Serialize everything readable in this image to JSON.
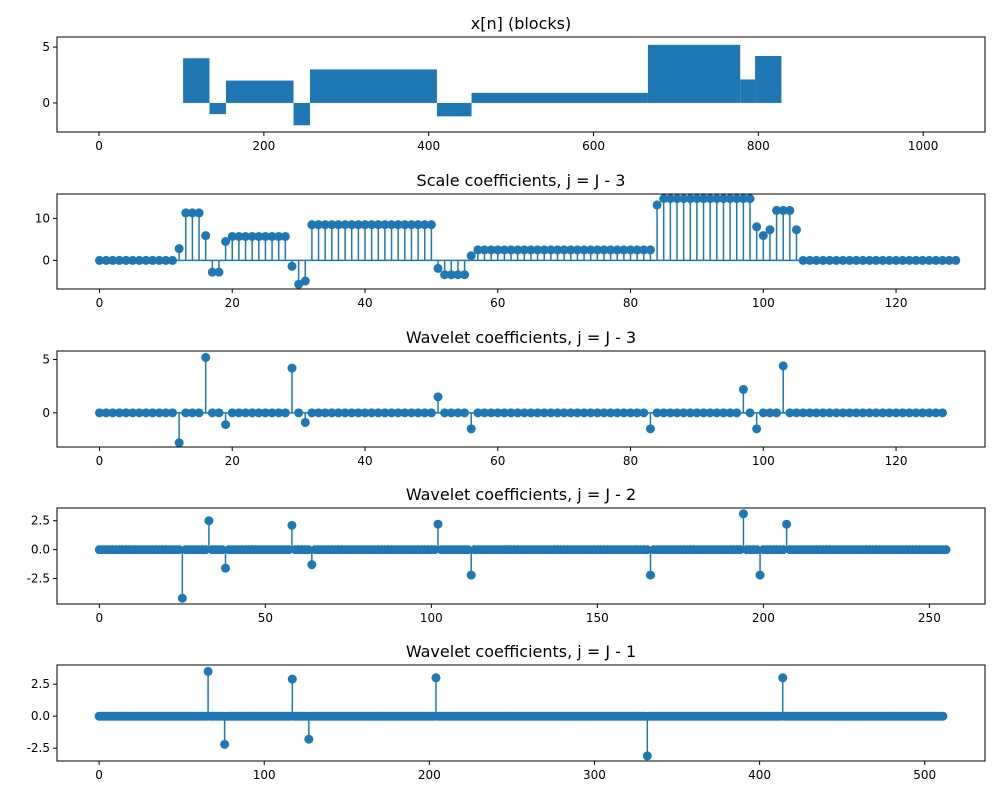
{
  "colors": {
    "series": "#1f77b4",
    "axis": "#000000",
    "background": "#ffffff"
  },
  "chart_data": [
    {
      "type": "area",
      "title": "x[n] (blocks)",
      "xlabel": "",
      "ylabel": "",
      "xlim": [
        -51,
        1075
      ],
      "ylim": [
        -2.6,
        5.9
      ],
      "xticks": [
        0,
        200,
        400,
        600,
        800,
        1000
      ],
      "yticks": [
        0,
        5
      ],
      "grid": false,
      "legend": "none",
      "steps": [
        {
          "start": 0,
          "end": 102,
          "value": 0
        },
        {
          "start": 102,
          "end": 134,
          "value": 4
        },
        {
          "start": 134,
          "end": 154,
          "value": -1
        },
        {
          "start": 154,
          "end": 236,
          "value": 2
        },
        {
          "start": 236,
          "end": 256,
          "value": -2
        },
        {
          "start": 256,
          "end": 410,
          "value": 3
        },
        {
          "start": 410,
          "end": 452,
          "value": -1.2
        },
        {
          "start": 452,
          "end": 666,
          "value": 0.9
        },
        {
          "start": 666,
          "end": 778,
          "value": 5.2
        },
        {
          "start": 778,
          "end": 796,
          "value": 2.1
        },
        {
          "start": 796,
          "end": 828,
          "value": 4.2
        },
        {
          "start": 828,
          "end": 1024,
          "value": 0
        }
      ]
    },
    {
      "type": "stem",
      "title": "Scale coefficients, j = J - 3",
      "xlabel": "",
      "ylabel": "",
      "xlim": [
        -6.4,
        133.4
      ],
      "ylim": [
        -6.8,
        15.8
      ],
      "xticks": [
        0,
        20,
        40,
        60,
        80,
        100,
        120
      ],
      "yticks": [
        0,
        10
      ],
      "grid": false,
      "legend": "none",
      "values": [
        0,
        0,
        0,
        0,
        0,
        0,
        0,
        0,
        0,
        0,
        0,
        0,
        2.8,
        11.3,
        11.3,
        11.3,
        5.9,
        -2.8,
        -2.8,
        4.5,
        5.7,
        5.7,
        5.7,
        5.7,
        5.7,
        5.7,
        5.7,
        5.7,
        5.7,
        -1.4,
        -5.7,
        -4.9,
        8.5,
        8.5,
        8.5,
        8.5,
        8.5,
        8.5,
        8.5,
        8.5,
        8.5,
        8.5,
        8.5,
        8.5,
        8.5,
        8.5,
        8.5,
        8.5,
        8.5,
        8.5,
        8.5,
        -1.9,
        -3.4,
        -3.4,
        -3.4,
        -3.4,
        1.1,
        2.5,
        2.5,
        2.5,
        2.5,
        2.5,
        2.5,
        2.5,
        2.5,
        2.5,
        2.5,
        2.5,
        2.5,
        2.5,
        2.5,
        2.5,
        2.5,
        2.5,
        2.5,
        2.5,
        2.5,
        2.5,
        2.5,
        2.5,
        2.5,
        2.5,
        2.5,
        2.5,
        13.2,
        14.7,
        14.7,
        14.7,
        14.7,
        14.7,
        14.7,
        14.7,
        14.7,
        14.7,
        14.7,
        14.7,
        14.7,
        14.7,
        14.7,
        8,
        5.9,
        7.3,
        11.9,
        11.9,
        11.9,
        7.3,
        0,
        0,
        0,
        0,
        0,
        0,
        0,
        0,
        0,
        0,
        0,
        0,
        0,
        0,
        0,
        0,
        0,
        0,
        0,
        0,
        0,
        0,
        0,
        0
      ]
    },
    {
      "type": "stem",
      "title": "Wavelet coefficients, j = J - 3",
      "xlabel": "",
      "ylabel": "",
      "xlim": [
        -6.4,
        133.4
      ],
      "ylim": [
        -3.2,
        5.8
      ],
      "xticks": [
        0,
        20,
        40,
        60,
        80,
        100,
        120
      ],
      "yticks": [
        0,
        5
      ],
      "grid": false,
      "legend": "none",
      "points": [
        [
          12,
          -2.8
        ],
        [
          16,
          5.2
        ],
        [
          19,
          -1.1
        ],
        [
          29,
          4.2
        ],
        [
          31,
          -0.9
        ],
        [
          51,
          1.5
        ],
        [
          56,
          -1.5
        ],
        [
          83,
          -1.5
        ],
        [
          97,
          2.2
        ],
        [
          99,
          -1.5
        ],
        [
          103,
          4.4
        ]
      ],
      "n": 128
    },
    {
      "type": "stem",
      "title": "Wavelet coefficients, j = J - 2",
      "xlabel": "",
      "ylabel": "",
      "xlim": [
        -12.75,
        266.75
      ],
      "ylim": [
        -4.7,
        3.6
      ],
      "xticks": [
        0,
        50,
        100,
        150,
        200,
        250
      ],
      "yticks": [
        -2.5,
        0.0,
        2.5
      ],
      "grid": false,
      "legend": "none",
      "points": [
        [
          25,
          -4.2
        ],
        [
          33,
          2.5
        ],
        [
          38,
          -1.6
        ],
        [
          58,
          2.1
        ],
        [
          64,
          -1.3
        ],
        [
          102,
          2.2
        ],
        [
          112,
          -2.2
        ],
        [
          166,
          -2.2
        ],
        [
          194,
          3.1
        ],
        [
          199,
          -2.2
        ],
        [
          207,
          2.2
        ]
      ],
      "n": 256
    },
    {
      "type": "stem",
      "title": "Wavelet coefficients, j = J - 1",
      "xlabel": "",
      "ylabel": "",
      "xlim": [
        -25.5,
        536.5
      ],
      "ylim": [
        -3.5,
        4
      ],
      "xticks": [
        0,
        100,
        200,
        300,
        400,
        500
      ],
      "yticks": [
        -2.5,
        0.0,
        2.5
      ],
      "grid": false,
      "legend": "none",
      "points": [
        [
          66,
          3.5
        ],
        [
          76,
          -2.2
        ],
        [
          117,
          2.9
        ],
        [
          127,
          -1.8
        ],
        [
          204,
          3
        ],
        [
          332,
          -3.1
        ],
        [
          414,
          3
        ]
      ],
      "n": 512
    }
  ]
}
